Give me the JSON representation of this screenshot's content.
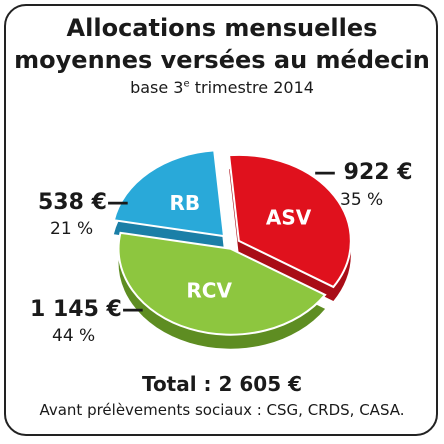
{
  "title_line1": "Allocations mensuelles",
  "title_line2": "moyennes versées au médecin",
  "subtitle_prefix": "base 3",
  "subtitle_sup": "e",
  "subtitle_suffix": " trimestre 2014",
  "total": "Total : 2 605 €",
  "note": "Avant prélèvements sociaux : CSG, CRDS, CASA.",
  "colors": {
    "ASV": "#e0111d",
    "RCV": "#8dc63f",
    "RB": "#29a9d9"
  },
  "chart_data": {
    "type": "pie",
    "title": "Allocations mensuelles moyennes versées au médecin",
    "subtitle": "base 3e trimestre 2014",
    "slices": [
      {
        "label": "ASV",
        "value": 922,
        "value_label": "922 €",
        "percent": 35,
        "percent_label": "35 %"
      },
      {
        "label": "RCV",
        "value": 1145,
        "value_label": "1 145 €",
        "percent": 44,
        "percent_label": "44 %"
      },
      {
        "label": "RB",
        "value": 538,
        "value_label": "538 €",
        "percent": 21,
        "percent_label": "21 %"
      }
    ],
    "total": 2605
  }
}
